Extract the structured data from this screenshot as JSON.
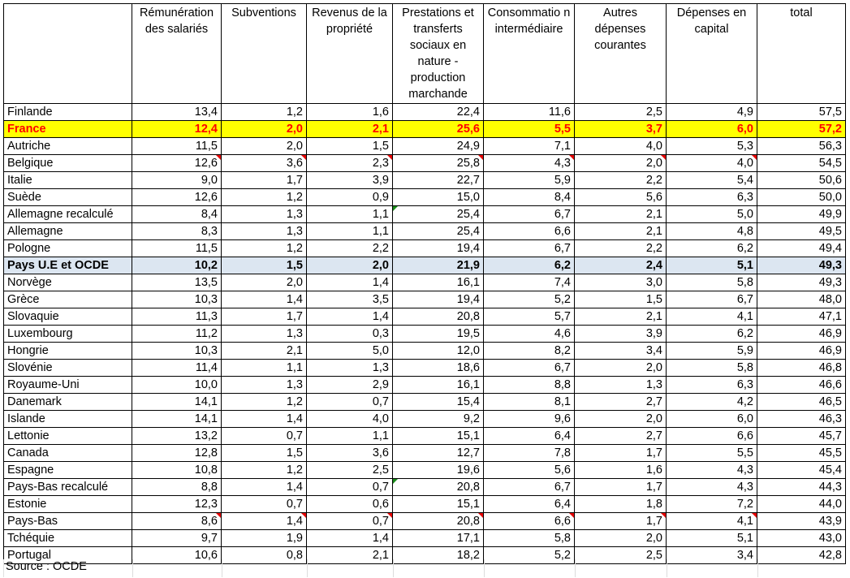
{
  "headers": [
    "",
    "Rémunération des salariés",
    "Subventions",
    "Revenus de la propriété",
    "Prestations et transferts sociaux en nature - production marchande",
    "Consommatio n intermédiaire",
    "Autres dépenses courantes",
    "Dépenses en capital",
    "total"
  ],
  "rows": [
    {
      "country": "Finlande",
      "values": [
        "13,4",
        "1,2",
        "1,6",
        "22,4",
        "11,6",
        "2,5",
        "4,9",
        "57,5"
      ]
    },
    {
      "country": "France",
      "values": [
        "12,4",
        "2,0",
        "2,1",
        "25,6",
        "5,5",
        "3,7",
        "6,0",
        "57,2"
      ]
    },
    {
      "country": "Autriche",
      "values": [
        "11,5",
        "2,0",
        "1,5",
        "24,9",
        "7,1",
        "4,0",
        "5,3",
        "56,3"
      ]
    },
    {
      "country": "Belgique",
      "values": [
        "12,6",
        "3,6",
        "2,3",
        "25,8",
        "4,3",
        "2,0",
        "4,0",
        "54,5"
      ]
    },
    {
      "country": "Italie",
      "values": [
        "9,0",
        "1,7",
        "3,9",
        "22,7",
        "5,9",
        "2,2",
        "5,4",
        "50,6"
      ]
    },
    {
      "country": "Suède",
      "values": [
        "12,6",
        "1,2",
        "0,9",
        "15,0",
        "8,4",
        "5,6",
        "6,3",
        "50,0"
      ]
    },
    {
      "country": "Allemagne recalculé",
      "values": [
        "8,4",
        "1,3",
        "1,1",
        "25,4",
        "6,7",
        "2,1",
        "5,0",
        "49,9"
      ]
    },
    {
      "country": "Allemagne",
      "values": [
        "8,3",
        "1,3",
        "1,1",
        "25,4",
        "6,6",
        "2,1",
        "4,8",
        "49,5"
      ]
    },
    {
      "country": "Pologne",
      "values": [
        "11,5",
        "1,2",
        "2,2",
        "19,4",
        "6,7",
        "2,2",
        "6,2",
        "49,4"
      ]
    },
    {
      "country": "Pays U.E et OCDE",
      "values": [
        "10,2",
        "1,5",
        "2,0",
        "21,9",
        "6,2",
        "2,4",
        "5,1",
        "49,3"
      ]
    },
    {
      "country": "Norvège",
      "values": [
        "13,5",
        "2,0",
        "1,4",
        "16,1",
        "7,4",
        "3,0",
        "5,8",
        "49,3"
      ]
    },
    {
      "country": "Grèce",
      "values": [
        "10,3",
        "1,4",
        "3,5",
        "19,4",
        "5,2",
        "1,5",
        "6,7",
        "48,0"
      ]
    },
    {
      "country": "Slovaquie",
      "values": [
        "11,3",
        "1,7",
        "1,4",
        "20,8",
        "5,7",
        "2,1",
        "4,1",
        "47,1"
      ]
    },
    {
      "country": "Luxembourg",
      "values": [
        "11,2",
        "1,3",
        "0,3",
        "19,5",
        "4,6",
        "3,9",
        "6,2",
        "46,9"
      ]
    },
    {
      "country": "Hongrie",
      "values": [
        "10,3",
        "2,1",
        "5,0",
        "12,0",
        "8,2",
        "3,4",
        "5,9",
        "46,9"
      ]
    },
    {
      "country": "Slovénie",
      "values": [
        "11,4",
        "1,1",
        "1,3",
        "18,6",
        "6,7",
        "2,0",
        "5,8",
        "46,8"
      ]
    },
    {
      "country": "Royaume-Uni",
      "values": [
        "10,0",
        "1,3",
        "2,9",
        "16,1",
        "8,8",
        "1,3",
        "6,3",
        "46,6"
      ]
    },
    {
      "country": "Danemark",
      "values": [
        "14,1",
        "1,2",
        "0,7",
        "15,4",
        "8,1",
        "2,7",
        "4,2",
        "46,5"
      ]
    },
    {
      "country": "Islande",
      "values": [
        "14,1",
        "1,4",
        "4,0",
        "9,2",
        "9,6",
        "2,0",
        "6,0",
        "46,3"
      ]
    },
    {
      "country": "Lettonie",
      "values": [
        "13,2",
        "0,7",
        "1,1",
        "15,1",
        "6,4",
        "2,7",
        "6,6",
        "45,7"
      ]
    },
    {
      "country": "Canada",
      "values": [
        "12,8",
        "1,5",
        "3,6",
        "12,7",
        "7,8",
        "1,7",
        "5,5",
        "45,5"
      ]
    },
    {
      "country": "Espagne",
      "values": [
        "10,8",
        "1,2",
        "2,5",
        "19,6",
        "5,6",
        "1,6",
        "4,3",
        "45,4"
      ]
    },
    {
      "country": "Pays-Bas recalculé",
      "values": [
        "8,8",
        "1,4",
        "0,7",
        "20,8",
        "6,7",
        "1,7",
        "4,3",
        "44,3"
      ]
    },
    {
      "country": "Estonie",
      "values": [
        "12,3",
        "0,7",
        "0,6",
        "15,1",
        "6,4",
        "1,8",
        "7,2",
        "44,0"
      ]
    },
    {
      "country": "Pays-Bas",
      "values": [
        "8,6",
        "1,4",
        "0,7",
        "20,8",
        "6,6",
        "1,7",
        "4,1",
        "43,9"
      ]
    },
    {
      "country": "Tchéquie",
      "values": [
        "9,7",
        "1,9",
        "1,4",
        "17,1",
        "5,8",
        "2,0",
        "5,1",
        "43,0"
      ]
    },
    {
      "country": "Portugal",
      "values": [
        "10,6",
        "0,8",
        "2,1",
        "18,2",
        "5,2",
        "2,5",
        "3,4",
        "42,8"
      ]
    }
  ],
  "source": "Source :  OCDE",
  "colors": {
    "france_bg": "#ffff00",
    "france_text": "#ff0000",
    "ue_bg": "#dce6f1",
    "comment_flag": "#e60000",
    "error_flag": "#1a8c1a"
  }
}
